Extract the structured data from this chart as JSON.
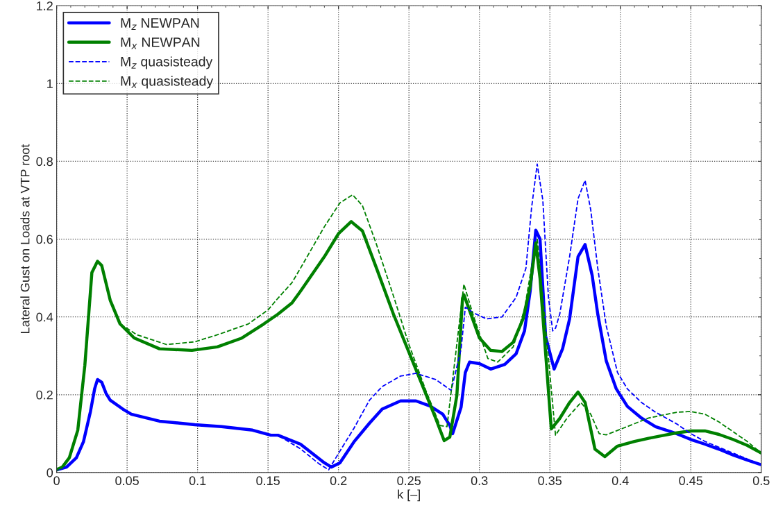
{
  "chart_data": {
    "type": "line",
    "xlabel": "k [–]",
    "ylabel": "Lateral Gust on Loads at VTP root",
    "xlim": [
      0,
      0.5
    ],
    "ylim": [
      0,
      1.2
    ],
    "xticks": [
      0,
      0.05,
      0.1,
      0.15,
      0.2,
      0.25,
      0.3,
      0.35,
      0.4,
      0.45,
      0.5
    ],
    "yticks": [
      0,
      0.2,
      0.4,
      0.6,
      0.8,
      1,
      1.2
    ],
    "grid": true,
    "legend": "top left",
    "series": [
      {
        "name": "M$_{z}$ NEWPAN",
        "color": "#0000ff",
        "line_style": "solid",
        "x": [
          0,
          0.007,
          0.014,
          0.019,
          0.024,
          0.027,
          0.029,
          0.032,
          0.035,
          0.038,
          0.047,
          0.053,
          0.073,
          0.098,
          0.117,
          0.139,
          0.152,
          0.157,
          0.173,
          0.19,
          0.195,
          0.201,
          0.211,
          0.222,
          0.231,
          0.244,
          0.255,
          0.265,
          0.274,
          0.279,
          0.281,
          0.287,
          0.29,
          0.293,
          0.3,
          0.308,
          0.318,
          0.326,
          0.332,
          0.336,
          0.34,
          0.343,
          0.347,
          0.353,
          0.359,
          0.364,
          0.37,
          0.375,
          0.38,
          0.384,
          0.39,
          0.397,
          0.405,
          0.415,
          0.425,
          0.44,
          0.45,
          0.46,
          0.47,
          0.48,
          0.49,
          0.5
        ],
        "values": [
          0.007,
          0.014,
          0.038,
          0.079,
          0.157,
          0.216,
          0.239,
          0.232,
          0.204,
          0.186,
          0.163,
          0.15,
          0.132,
          0.123,
          0.118,
          0.109,
          0.096,
          0.096,
          0.073,
          0.025,
          0.014,
          0.025,
          0.079,
          0.127,
          0.163,
          0.184,
          0.184,
          0.171,
          0.15,
          0.121,
          0.1,
          0.168,
          0.257,
          0.284,
          0.28,
          0.266,
          0.278,
          0.305,
          0.364,
          0.466,
          0.623,
          0.6,
          0.35,
          0.266,
          0.318,
          0.395,
          0.555,
          0.586,
          0.507,
          0.407,
          0.287,
          0.216,
          0.17,
          0.14,
          0.118,
          0.1,
          0.085,
          0.073,
          0.06,
          0.045,
          0.032,
          0.02
        ]
      },
      {
        "name": "M$_{x}$ NEWPAN",
        "color": "#008000",
        "line_style": "solid",
        "x": [
          0,
          0.004,
          0.009,
          0.015,
          0.02,
          0.025,
          0.029,
          0.032,
          0.038,
          0.045,
          0.055,
          0.073,
          0.096,
          0.114,
          0.131,
          0.147,
          0.157,
          0.167,
          0.173,
          0.19,
          0.2,
          0.209,
          0.217,
          0.227,
          0.239,
          0.249,
          0.259,
          0.269,
          0.275,
          0.279,
          0.284,
          0.288,
          0.289,
          0.3,
          0.308,
          0.316,
          0.324,
          0.331,
          0.336,
          0.34,
          0.343,
          0.351,
          0.357,
          0.364,
          0.37,
          0.375,
          0.382,
          0.389,
          0.398,
          0.41,
          0.42,
          0.43,
          0.44,
          0.45,
          0.46,
          0.47,
          0.48,
          0.49,
          0.5
        ],
        "values": [
          0.007,
          0.014,
          0.038,
          0.109,
          0.275,
          0.514,
          0.543,
          0.532,
          0.443,
          0.382,
          0.346,
          0.318,
          0.314,
          0.323,
          0.345,
          0.382,
          0.407,
          0.436,
          0.466,
          0.555,
          0.614,
          0.645,
          0.621,
          0.525,
          0.407,
          0.318,
          0.229,
          0.139,
          0.082,
          0.091,
          0.198,
          0.448,
          0.457,
          0.346,
          0.314,
          0.311,
          0.335,
          0.395,
          0.478,
          0.59,
          0.5,
          0.112,
          0.139,
          0.18,
          0.207,
          0.18,
          0.06,
          0.041,
          0.068,
          0.08,
          0.088,
          0.095,
          0.102,
          0.107,
          0.107,
          0.098,
          0.085,
          0.07,
          0.05
        ]
      },
      {
        "name": "M$_{z}$ quasisteady",
        "color": "#0000ff",
        "line_style": "dashed",
        "x": [
          0,
          0.007,
          0.014,
          0.019,
          0.024,
          0.027,
          0.029,
          0.032,
          0.035,
          0.038,
          0.047,
          0.053,
          0.073,
          0.098,
          0.117,
          0.139,
          0.152,
          0.157,
          0.173,
          0.186,
          0.193,
          0.201,
          0.211,
          0.222,
          0.231,
          0.244,
          0.255,
          0.269,
          0.28,
          0.287,
          0.29,
          0.296,
          0.305,
          0.316,
          0.326,
          0.333,
          0.337,
          0.341,
          0.345,
          0.349,
          0.352,
          0.354,
          0.357,
          0.364,
          0.37,
          0.375,
          0.379,
          0.384,
          0.39,
          0.398,
          0.405,
          0.415,
          0.425,
          0.44,
          0.45,
          0.46,
          0.47,
          0.48,
          0.49,
          0.5
        ],
        "values": [
          0.007,
          0.014,
          0.038,
          0.079,
          0.157,
          0.216,
          0.239,
          0.232,
          0.204,
          0.186,
          0.163,
          0.15,
          0.132,
          0.123,
          0.118,
          0.109,
          0.096,
          0.096,
          0.061,
          0.023,
          0.007,
          0.055,
          0.114,
          0.186,
          0.221,
          0.248,
          0.255,
          0.239,
          0.211,
          0.318,
          0.425,
          0.41,
          0.395,
          0.4,
          0.45,
          0.525,
          0.68,
          0.793,
          0.7,
          0.45,
          0.364,
          0.371,
          0.407,
          0.555,
          0.704,
          0.751,
          0.675,
          0.525,
          0.377,
          0.257,
          0.215,
          0.18,
          0.155,
          0.125,
          0.1,
          0.08,
          0.065,
          0.05,
          0.035,
          0.02
        ]
      },
      {
        "name": "M$_{x}$ quasisteady",
        "color": "#008000",
        "line_style": "dashed",
        "x": [
          0,
          0.004,
          0.009,
          0.015,
          0.02,
          0.025,
          0.029,
          0.032,
          0.038,
          0.045,
          0.057,
          0.078,
          0.098,
          0.114,
          0.136,
          0.15,
          0.157,
          0.167,
          0.173,
          0.19,
          0.201,
          0.21,
          0.217,
          0.227,
          0.239,
          0.25,
          0.262,
          0.272,
          0.277,
          0.283,
          0.289,
          0.296,
          0.306,
          0.313,
          0.324,
          0.332,
          0.338,
          0.341,
          0.345,
          0.354,
          0.362,
          0.372,
          0.379,
          0.385,
          0.39,
          0.402,
          0.42,
          0.44,
          0.45,
          0.46,
          0.47,
          0.48,
          0.49,
          0.5
        ],
        "values": [
          0.007,
          0.014,
          0.038,
          0.109,
          0.275,
          0.514,
          0.543,
          0.532,
          0.443,
          0.382,
          0.354,
          0.329,
          0.336,
          0.354,
          0.382,
          0.418,
          0.448,
          0.488,
          0.525,
          0.632,
          0.693,
          0.714,
          0.686,
          0.586,
          0.454,
          0.329,
          0.211,
          0.121,
          0.118,
          0.3,
          0.484,
          0.4,
          0.293,
          0.284,
          0.323,
          0.42,
          0.55,
          0.6,
          0.45,
          0.096,
          0.139,
          0.18,
          0.15,
          0.1,
          0.097,
          0.114,
          0.14,
          0.155,
          0.157,
          0.15,
          0.13,
          0.105,
          0.08,
          0.05
        ]
      }
    ]
  }
}
